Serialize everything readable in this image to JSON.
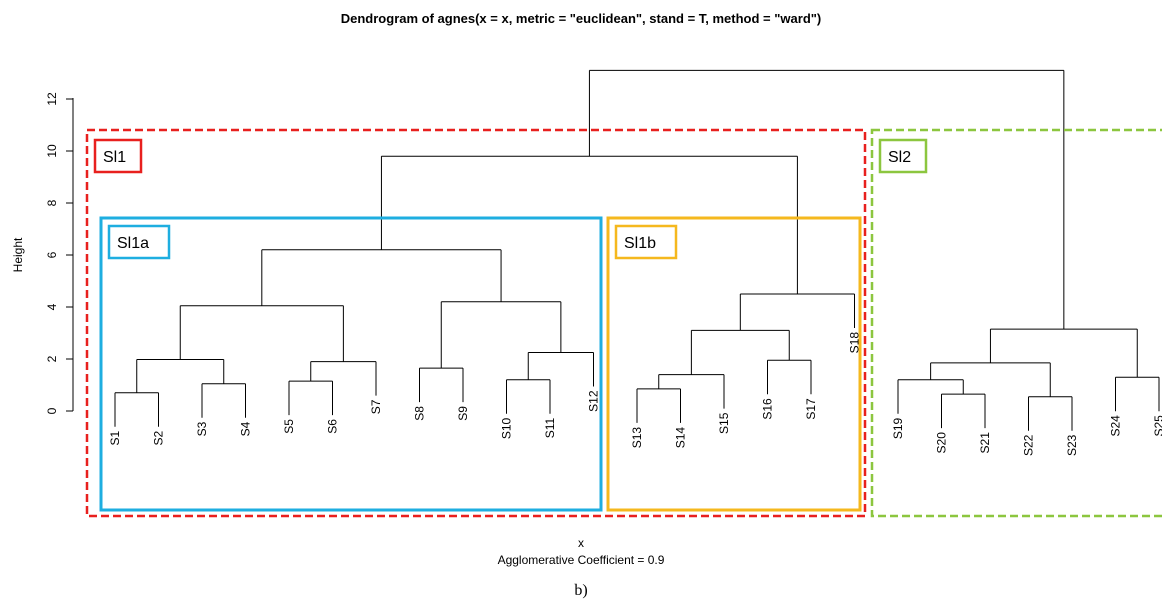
{
  "chart_data": {
    "type": "dendrogram",
    "title": "Dendrogram of  agnes(x = x, metric = \"euclidean\", stand = T, method = \"ward\")",
    "xlabel": "x",
    "ylabel": "Height",
    "subtitle": "Agglomerative Coefficient =  0.9",
    "caption": "b)",
    "ylim": [
      0,
      13.1
    ],
    "yticks": [
      0,
      2,
      4,
      6,
      8,
      10,
      12
    ],
    "leaves": [
      "S1",
      "S2",
      "S3",
      "S4",
      "S5",
      "S6",
      "S7",
      "S8",
      "S9",
      "S10",
      "S11",
      "S12",
      "S13",
      "S14",
      "S15",
      "S16",
      "S17",
      "S18",
      "S19",
      "S20",
      "S21",
      "S22",
      "S23",
      "S24",
      "S25"
    ],
    "merges": [
      {
        "left": "S1",
        "right": "S2",
        "height": 0.7
      },
      {
        "left": "S3",
        "right": "S4",
        "height": 1.05
      },
      {
        "left": "m1",
        "right": "m2",
        "height": 1.98
      },
      {
        "left": "S5",
        "right": "S6",
        "height": 1.15
      },
      {
        "left": "m4",
        "right": "S7",
        "height": 1.9
      },
      {
        "left": "m3",
        "right": "m5",
        "height": 4.05
      },
      {
        "left": "S8",
        "right": "S9",
        "height": 1.65
      },
      {
        "left": "S10",
        "right": "S11",
        "height": 1.2
      },
      {
        "left": "m8",
        "right": "S12",
        "height": 2.25
      },
      {
        "left": "m7",
        "right": "m9",
        "height": 4.2
      },
      {
        "left": "m6",
        "right": "m10",
        "height": 6.2
      },
      {
        "left": "S13",
        "right": "S14",
        "height": 0.85
      },
      {
        "left": "m12",
        "right": "S15",
        "height": 1.4
      },
      {
        "left": "S16",
        "right": "S17",
        "height": 1.95
      },
      {
        "left": "m13",
        "right": "m14",
        "height": 3.1
      },
      {
        "left": "m15",
        "right": "S18",
        "height": 4.5
      },
      {
        "left": "m11",
        "right": "m16",
        "height": 9.8
      },
      {
        "left": "S20",
        "right": "S21",
        "height": 0.65
      },
      {
        "left": "S19",
        "right": "m18",
        "height": 1.2
      },
      {
        "left": "S22",
        "right": "S23",
        "height": 0.55
      },
      {
        "left": "m19",
        "right": "m20",
        "height": 1.85
      },
      {
        "left": "S24",
        "right": "S25",
        "height": 1.3
      },
      {
        "left": "m21",
        "right": "m22",
        "height": 3.15
      },
      {
        "left": "m17",
        "right": "m23",
        "height": 13.1
      }
    ],
    "groups": [
      {
        "label": "Sl1",
        "color": "#e8201e",
        "style": "dashed",
        "from": "S1",
        "to": "S18"
      },
      {
        "label": "Sl1a",
        "color": "#1eaee0",
        "style": "solid",
        "from": "S1",
        "to": "S12"
      },
      {
        "label": "Sl1b",
        "color": "#f5b81e",
        "style": "solid",
        "from": "S13",
        "to": "S18"
      },
      {
        "label": "Sl2",
        "color": "#8cc63f",
        "style": "dashed",
        "from": "S19",
        "to": "S25"
      }
    ]
  }
}
